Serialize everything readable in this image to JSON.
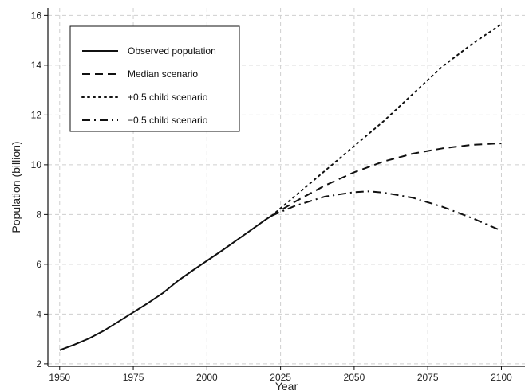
{
  "chart_data": {
    "type": "line",
    "xlabel": "Year",
    "ylabel": "Population (billion)",
    "xlim": [
      1946,
      2108
    ],
    "ylim": [
      1.9,
      16.3
    ],
    "xticks": [
      1950,
      1975,
      2000,
      2025,
      2050,
      2075,
      2100
    ],
    "yticks": [
      2,
      4,
      6,
      8,
      10,
      12,
      14,
      16
    ],
    "grid": true,
    "legend_position": "top-left",
    "series": [
      {
        "name": "Observed population",
        "style": "solid",
        "x": [
          1950,
          1955,
          1960,
          1965,
          1970,
          1975,
          1980,
          1985,
          1990,
          1995,
          2000,
          2005,
          2010,
          2015,
          2020,
          2022
        ],
        "y": [
          2.55,
          2.77,
          3.02,
          3.33,
          3.7,
          4.07,
          4.44,
          4.84,
          5.32,
          5.74,
          6.14,
          6.54,
          6.96,
          7.38,
          7.8,
          7.95
        ]
      },
      {
        "name": "Median scenario",
        "style": "dashed",
        "x": [
          2022,
          2030,
          2040,
          2050,
          2060,
          2070,
          2080,
          2090,
          2100
        ],
        "y": [
          7.95,
          8.52,
          9.16,
          9.7,
          10.13,
          10.45,
          10.66,
          10.8,
          10.86
        ]
      },
      {
        "name": "+0.5 child scenario",
        "style": "dotted",
        "x": [
          2022,
          2030,
          2040,
          2050,
          2060,
          2070,
          2080,
          2090,
          2100
        ],
        "y": [
          7.95,
          8.75,
          9.75,
          10.75,
          11.75,
          12.85,
          13.95,
          14.85,
          15.65
        ]
      },
      {
        "name": "−0.5 child scenario",
        "style": "dashdot",
        "x": [
          2022,
          2030,
          2040,
          2050,
          2055,
          2060,
          2070,
          2080,
          2090,
          2100
        ],
        "y": [
          7.95,
          8.35,
          8.72,
          8.9,
          8.93,
          8.88,
          8.67,
          8.31,
          7.86,
          7.35
        ]
      }
    ]
  }
}
